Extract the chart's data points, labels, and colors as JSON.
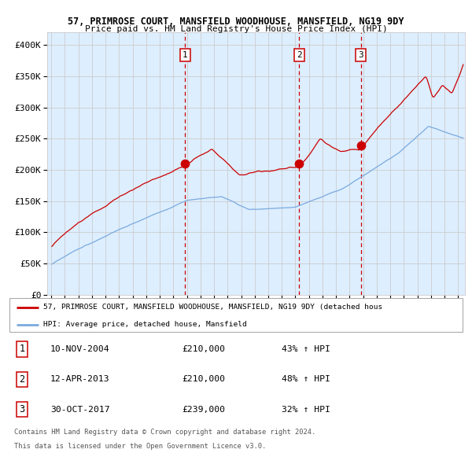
{
  "title1": "57, PRIMROSE COURT, MANSFIELD WOODHOUSE, MANSFIELD, NG19 9DY",
  "title2": "Price paid vs. HM Land Registry's House Price Index (HPI)",
  "ylabel_ticks": [
    "£0",
    "£50K",
    "£100K",
    "£150K",
    "£200K",
    "£250K",
    "£300K",
    "£350K",
    "£400K"
  ],
  "ytick_vals": [
    0,
    50000,
    100000,
    150000,
    200000,
    250000,
    300000,
    350000,
    400000
  ],
  "ylim": [
    0,
    420000
  ],
  "xlim_start": 1994.7,
  "xlim_end": 2025.5,
  "xticks": [
    1995,
    1996,
    1997,
    1998,
    1999,
    2000,
    2001,
    2002,
    2003,
    2004,
    2005,
    2006,
    2007,
    2008,
    2009,
    2010,
    2011,
    2012,
    2013,
    2014,
    2015,
    2016,
    2017,
    2018,
    2019,
    2020,
    2021,
    2022,
    2023,
    2024,
    2025
  ],
  "sale1_x": 2004.865,
  "sale1_y": 210000,
  "sale1_label": "1",
  "sale1_date": "10-NOV-2004",
  "sale1_price": "£210,000",
  "sale1_hpi": "43% ↑ HPI",
  "sale2_x": 2013.29,
  "sale2_y": 210000,
  "sale2_label": "2",
  "sale2_date": "12-APR-2013",
  "sale2_price": "£210,000",
  "sale2_hpi": "48% ↑ HPI",
  "sale3_x": 2017.83,
  "sale3_y": 239000,
  "sale3_label": "3",
  "sale3_date": "30-OCT-2017",
  "sale3_price": "£239,000",
  "sale3_hpi": "32% ↑ HPI",
  "red_color": "#cc0000",
  "blue_color": "#7aaadd",
  "blue_fill": "#ddeeff",
  "bg_color": "#ffffff",
  "grid_color": "#cccccc",
  "legend_line1": "57, PRIMROSE COURT, MANSFIELD WOODHOUSE, MANSFIELD, NG19 9DY (detached hous",
  "legend_line2": "HPI: Average price, detached house, Mansfield",
  "footer1": "Contains HM Land Registry data © Crown copyright and database right 2024.",
  "footer2": "This data is licensed under the Open Government Licence v3.0."
}
